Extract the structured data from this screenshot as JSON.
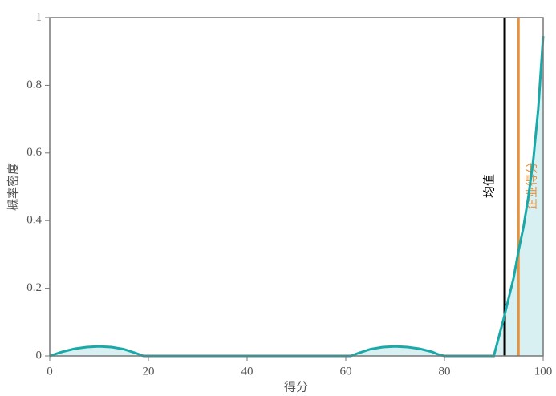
{
  "chart_data": {
    "type": "area",
    "x_label": "得分",
    "y_label": "概率密度",
    "x": [
      0,
      2.5,
      5,
      7.5,
      10,
      12.5,
      15,
      17.5,
      19,
      61,
      62.5,
      65,
      67.5,
      70,
      72.5,
      75,
      77.5,
      79,
      80,
      90,
      92,
      94,
      95,
      96,
      97,
      98,
      99,
      100
    ],
    "values": [
      0,
      0.012,
      0.021,
      0.026,
      0.028,
      0.026,
      0.02,
      0.008,
      0,
      0,
      0.008,
      0.02,
      0.026,
      0.028,
      0.026,
      0.021,
      0.012,
      0.003,
      0,
      0,
      0.11,
      0.23,
      0.31,
      0.38,
      0.47,
      0.58,
      0.73,
      0.945
    ],
    "color": "#1aa9a9",
    "fill": "#d8f0f2",
    "markers": [
      {
        "name": "均值",
        "x": 92.2,
        "color": "#000000"
      },
      {
        "name": "企业得分",
        "x": 95,
        "color": "#e8913a"
      }
    ],
    "xlim": [
      0,
      100
    ],
    "xticks": [
      0,
      20,
      40,
      60,
      80,
      100
    ],
    "ylim": [
      0,
      1
    ],
    "yticks": [
      0,
      0.2,
      0.4,
      0.6,
      0.8,
      1
    ]
  }
}
